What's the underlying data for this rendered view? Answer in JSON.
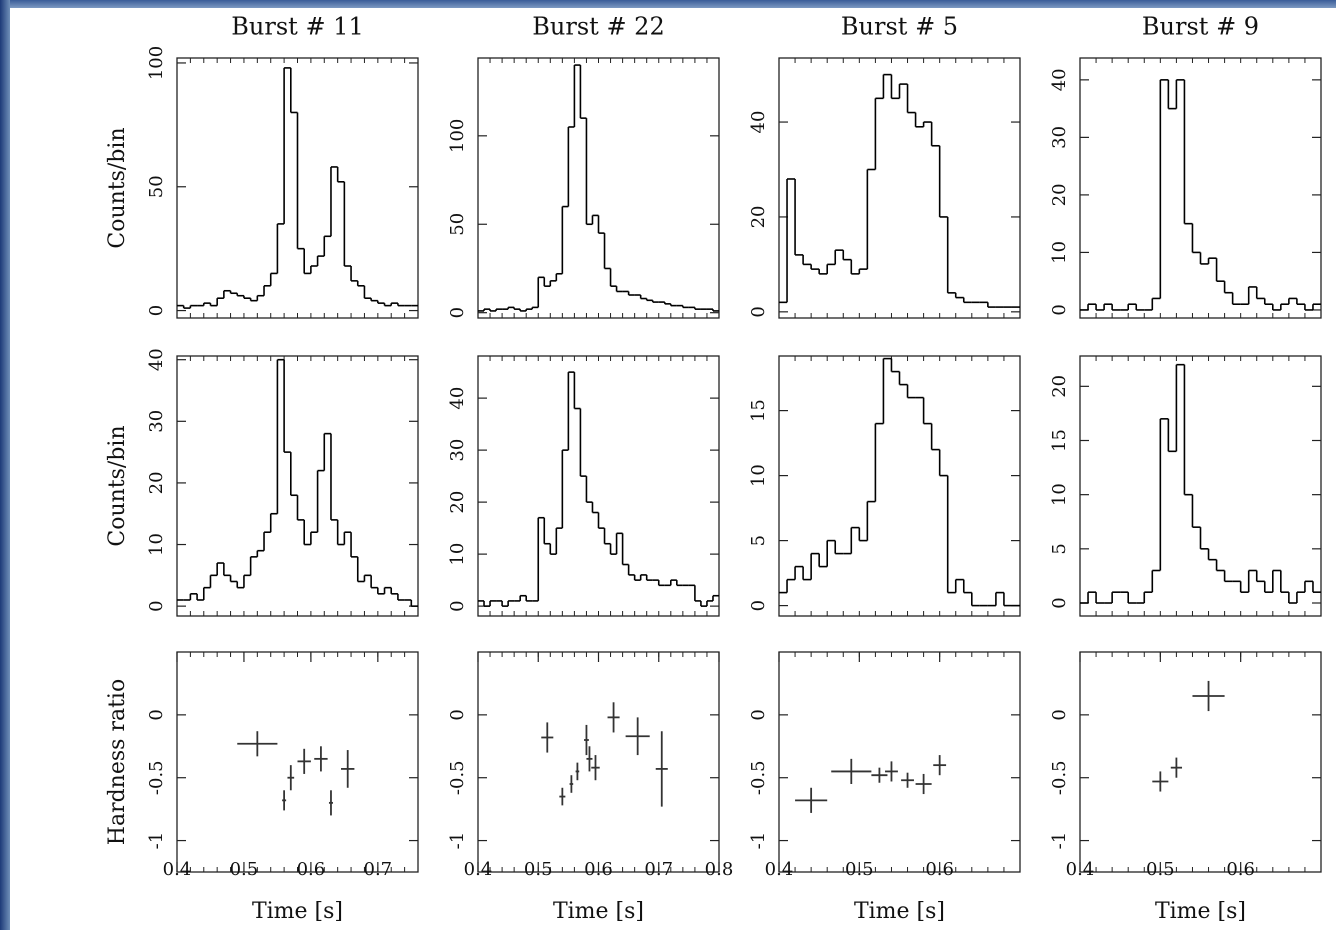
{
  "chart_data": [
    {
      "type": "histogram",
      "title": "Burst # 11",
      "ylabel": "Counts/bin",
      "color": "#000000",
      "xlim": [
        0.4,
        0.76
      ],
      "ylim": [
        -3,
        102
      ],
      "yticks": [
        0,
        50,
        100
      ],
      "bins": [
        0.4,
        0.41,
        0.42,
        0.43,
        0.44,
        0.45,
        0.46,
        0.47,
        0.48,
        0.49,
        0.5,
        0.51,
        0.52,
        0.53,
        0.54,
        0.55,
        0.56,
        0.57,
        0.58,
        0.59,
        0.6,
        0.61,
        0.62,
        0.63,
        0.64,
        0.65,
        0.66,
        0.67,
        0.68,
        0.69,
        0.7,
        0.71,
        0.72,
        0.73,
        0.74,
        0.75,
        0.76
      ],
      "values": [
        2,
        1,
        2,
        2,
        3,
        2,
        5,
        8,
        7,
        6,
        5,
        4,
        6,
        10,
        15,
        35,
        98,
        80,
        25,
        15,
        18,
        22,
        30,
        58,
        52,
        18,
        12,
        10,
        5,
        4,
        3,
        2,
        3,
        2,
        2,
        2
      ]
    },
    {
      "type": "histogram",
      "title": "Burst # 22",
      "color": "#000000",
      "xlim": [
        0.4,
        0.8
      ],
      "ylim": [
        -3,
        144
      ],
      "yticks": [
        0,
        50,
        100
      ],
      "bins": [
        0.4,
        0.41,
        0.42,
        0.43,
        0.44,
        0.45,
        0.46,
        0.47,
        0.48,
        0.49,
        0.5,
        0.51,
        0.52,
        0.53,
        0.54,
        0.55,
        0.56,
        0.57,
        0.58,
        0.59,
        0.6,
        0.61,
        0.62,
        0.63,
        0.64,
        0.65,
        0.66,
        0.67,
        0.68,
        0.69,
        0.7,
        0.71,
        0.72,
        0.73,
        0.74,
        0.75,
        0.76,
        0.77,
        0.78,
        0.79,
        0.8
      ],
      "values": [
        1,
        2,
        1,
        2,
        2,
        3,
        2,
        1,
        2,
        3,
        20,
        15,
        18,
        22,
        60,
        105,
        140,
        110,
        50,
        55,
        45,
        25,
        15,
        12,
        12,
        10,
        10,
        8,
        7,
        6,
        6,
        5,
        4,
        4,
        3,
        3,
        2,
        2,
        2,
        1
      ]
    },
    {
      "type": "histogram",
      "title": "Burst # 5",
      "color": "#000000",
      "xlim": [
        0.4,
        0.7
      ],
      "ylim": [
        -1.3,
        53.5
      ],
      "yticks": [
        0,
        20,
        40
      ],
      "bins": [
        0.4,
        0.41,
        0.42,
        0.43,
        0.44,
        0.45,
        0.46,
        0.47,
        0.48,
        0.49,
        0.5,
        0.51,
        0.52,
        0.53,
        0.54,
        0.55,
        0.56,
        0.57,
        0.58,
        0.59,
        0.6,
        0.61,
        0.62,
        0.63,
        0.64,
        0.65,
        0.66,
        0.67,
        0.68,
        0.69,
        0.7
      ],
      "values": [
        2,
        28,
        12,
        10,
        9,
        8,
        10,
        13,
        11,
        8,
        9,
        30,
        45,
        50,
        45,
        48,
        42,
        39,
        40,
        35,
        20,
        4,
        3,
        2,
        2,
        2,
        1,
        1,
        1,
        1
      ]
    },
    {
      "type": "histogram",
      "title": "Burst # 9",
      "color": "#000000",
      "xlim": [
        0.4,
        0.7
      ],
      "ylim": [
        -1.4,
        43.8
      ],
      "yticks": [
        0,
        10,
        20,
        30,
        40
      ],
      "bins": [
        0.4,
        0.41,
        0.42,
        0.43,
        0.44,
        0.45,
        0.46,
        0.47,
        0.48,
        0.49,
        0.5,
        0.51,
        0.52,
        0.53,
        0.54,
        0.55,
        0.56,
        0.57,
        0.58,
        0.59,
        0.6,
        0.61,
        0.62,
        0.63,
        0.64,
        0.65,
        0.66,
        0.67,
        0.68,
        0.69,
        0.7
      ],
      "values": [
        0,
        1,
        0,
        1,
        0,
        0,
        1,
        0,
        0,
        2,
        40,
        35,
        40,
        15,
        10,
        8,
        9,
        5,
        3,
        1,
        1,
        4,
        2,
        1,
        0,
        1,
        2,
        1,
        0,
        1
      ]
    },
    {
      "type": "histogram",
      "ylabel": "Counts/bin",
      "color": "#000000",
      "xlim": [
        0.4,
        0.76
      ],
      "ylim": [
        -1.6,
        40.6
      ],
      "yticks": [
        0,
        10,
        20,
        30,
        40
      ],
      "bins": [
        0.4,
        0.41,
        0.42,
        0.43,
        0.44,
        0.45,
        0.46,
        0.47,
        0.48,
        0.49,
        0.5,
        0.51,
        0.52,
        0.53,
        0.54,
        0.55,
        0.56,
        0.57,
        0.58,
        0.59,
        0.6,
        0.61,
        0.62,
        0.63,
        0.64,
        0.65,
        0.66,
        0.67,
        0.68,
        0.69,
        0.7,
        0.71,
        0.72,
        0.73,
        0.74,
        0.75,
        0.76
      ],
      "values": [
        1,
        1,
        2,
        1,
        3,
        5,
        7,
        5,
        4,
        3,
        5,
        8,
        9,
        12,
        15,
        40,
        25,
        18,
        14,
        10,
        12,
        22,
        28,
        14,
        10,
        12,
        8,
        4,
        5,
        3,
        2,
        3,
        2,
        1,
        1,
        0
      ]
    },
    {
      "type": "histogram",
      "color": "#000000",
      "xlim": [
        0.4,
        0.8
      ],
      "ylim": [
        -1.9,
        48.1
      ],
      "yticks": [
        0,
        10,
        20,
        30,
        40
      ],
      "bins": [
        0.4,
        0.41,
        0.42,
        0.43,
        0.44,
        0.45,
        0.46,
        0.47,
        0.48,
        0.49,
        0.5,
        0.51,
        0.52,
        0.53,
        0.54,
        0.55,
        0.56,
        0.57,
        0.58,
        0.59,
        0.6,
        0.61,
        0.62,
        0.63,
        0.64,
        0.65,
        0.66,
        0.67,
        0.68,
        0.69,
        0.7,
        0.71,
        0.72,
        0.73,
        0.74,
        0.75,
        0.76,
        0.77,
        0.78,
        0.79,
        0.8
      ],
      "values": [
        1,
        0,
        1,
        1,
        0,
        1,
        1,
        2,
        1,
        1,
        17,
        12,
        10,
        15,
        30,
        45,
        38,
        25,
        20,
        18,
        15,
        12,
        10,
        14,
        8,
        6,
        5,
        6,
        5,
        5,
        4,
        4,
        5,
        4,
        4,
        4,
        1,
        0,
        1,
        2
      ]
    },
    {
      "type": "histogram",
      "color": "#000000",
      "xlim": [
        0.4,
        0.7
      ],
      "ylim": [
        -0.8,
        19.2
      ],
      "yticks": [
        0,
        5,
        10,
        15
      ],
      "bins": [
        0.4,
        0.41,
        0.42,
        0.43,
        0.44,
        0.45,
        0.46,
        0.47,
        0.48,
        0.49,
        0.5,
        0.51,
        0.52,
        0.53,
        0.54,
        0.55,
        0.56,
        0.57,
        0.58,
        0.59,
        0.6,
        0.61,
        0.62,
        0.63,
        0.64,
        0.65,
        0.66,
        0.67,
        0.68,
        0.69,
        0.7
      ],
      "values": [
        1,
        2,
        3,
        2,
        4,
        3,
        5,
        4,
        4,
        6,
        5,
        8,
        14,
        19,
        18,
        17,
        16,
        16,
        14,
        12,
        10,
        1,
        2,
        1,
        0,
        0,
        0,
        1,
        0,
        0
      ]
    },
    {
      "type": "histogram",
      "color": "#000000",
      "xlim": [
        0.4,
        0.7
      ],
      "ylim": [
        -1.2,
        22.8
      ],
      "yticks": [
        0,
        5,
        10,
        15,
        20
      ],
      "bins": [
        0.4,
        0.41,
        0.42,
        0.43,
        0.44,
        0.45,
        0.46,
        0.47,
        0.48,
        0.49,
        0.5,
        0.51,
        0.52,
        0.53,
        0.54,
        0.55,
        0.56,
        0.57,
        0.58,
        0.59,
        0.6,
        0.61,
        0.62,
        0.63,
        0.64,
        0.65,
        0.66,
        0.67,
        0.68,
        0.69,
        0.7
      ],
      "values": [
        0,
        1,
        0,
        0,
        1,
        1,
        0,
        0,
        1,
        3,
        17,
        14,
        22,
        10,
        7,
        5,
        4,
        3,
        2,
        2,
        1,
        3,
        2,
        1,
        3,
        1,
        0,
        1,
        2,
        1
      ]
    },
    {
      "type": "errorbar",
      "ylabel": "Hardness ratio",
      "xlabel": "Time [s]",
      "color": "#333333",
      "xlim": [
        0.4,
        0.76
      ],
      "ylim": [
        -1.25,
        0.5
      ],
      "xticks": [
        0.4,
        0.5,
        0.6,
        0.7
      ],
      "yticks": [
        0,
        -0.5,
        -1
      ],
      "x": [
        0.52,
        0.56,
        0.57,
        0.59,
        0.615,
        0.63,
        0.655
      ],
      "values": [
        -0.23,
        -0.68,
        -0.5,
        -0.37,
        -0.35,
        -0.7,
        -0.43
      ],
      "xerr": [
        0.03,
        0.003,
        0.005,
        0.01,
        0.01,
        0.003,
        0.01
      ],
      "yerr": [
        0.1,
        0.08,
        0.1,
        0.1,
        0.1,
        0.1,
        0.15
      ]
    },
    {
      "type": "errorbar",
      "xlabel": "Time [s]",
      "color": "#333333",
      "xlim": [
        0.4,
        0.8
      ],
      "ylim": [
        -1.25,
        0.5
      ],
      "xticks": [
        0.4,
        0.5,
        0.6,
        0.7,
        0.8
      ],
      "yticks": [
        0,
        -0.5,
        -1
      ],
      "x": [
        0.515,
        0.54,
        0.555,
        0.565,
        0.58,
        0.585,
        0.595,
        0.625,
        0.665,
        0.705
      ],
      "values": [
        -0.18,
        -0.65,
        -0.55,
        -0.45,
        -0.2,
        -0.35,
        -0.42,
        -0.02,
        -0.17,
        -0.43
      ],
      "xerr": [
        0.01,
        0.005,
        0.003,
        0.003,
        0.004,
        0.005,
        0.007,
        0.01,
        0.02,
        0.01
      ],
      "yerr": [
        0.12,
        0.07,
        0.07,
        0.07,
        0.12,
        0.1,
        0.1,
        0.12,
        0.15,
        0.3
      ]
    },
    {
      "type": "errorbar",
      "xlabel": "Time [s]",
      "color": "#333333",
      "xlim": [
        0.4,
        0.7
      ],
      "ylim": [
        -1.25,
        0.5
      ],
      "xticks": [
        0.4,
        0.5,
        0.6
      ],
      "yticks": [
        0,
        -0.5,
        -1
      ],
      "x": [
        0.44,
        0.49,
        0.525,
        0.54,
        0.56,
        0.58,
        0.6
      ],
      "values": [
        -0.68,
        -0.45,
        -0.48,
        -0.45,
        -0.52,
        -0.55,
        -0.4
      ],
      "xerr": [
        0.02,
        0.025,
        0.01,
        0.008,
        0.008,
        0.01,
        0.008
      ],
      "yerr": [
        0.1,
        0.1,
        0.06,
        0.08,
        0.06,
        0.08,
        0.08
      ]
    },
    {
      "type": "errorbar",
      "xlabel": "Time [s]",
      "color": "#333333",
      "xlim": [
        0.4,
        0.7
      ],
      "ylim": [
        -1.25,
        0.5
      ],
      "xticks": [
        0.4,
        0.5,
        0.6
      ],
      "yticks": [
        0,
        -0.5,
        -1
      ],
      "x": [
        0.5,
        0.52,
        0.56
      ],
      "values": [
        -0.53,
        -0.42,
        0.15
      ],
      "xerr": [
        0.01,
        0.007,
        0.02
      ],
      "yerr": [
        0.08,
        0.08,
        0.12
      ]
    }
  ]
}
